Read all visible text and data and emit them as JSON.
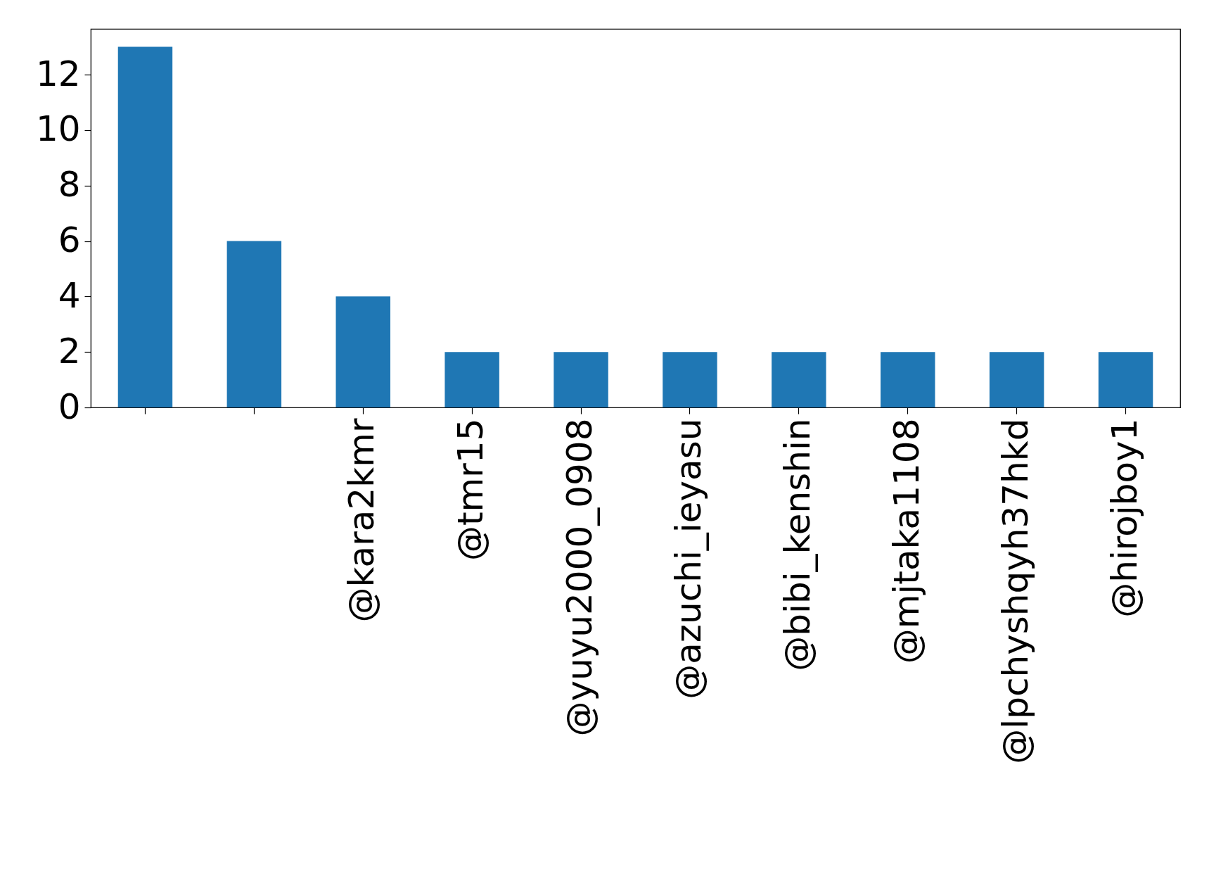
{
  "chart_data": {
    "type": "bar",
    "categories": [
      null,
      null,
      "@kara2kmr",
      "@tmr15",
      "@yuyu2000_0908",
      "@azuchi_ieyasu",
      "@bibi_kenshin",
      "@mjtaka1108",
      "@lpchyshqyh37hkd",
      "@hirojboy1"
    ],
    "values": [
      13,
      6,
      4,
      2,
      2,
      2,
      2,
      2,
      2,
      2
    ],
    "color": "#1f77b4",
    "ylim": [
      0,
      13.65
    ],
    "yticks": [
      0,
      2,
      4,
      6,
      8,
      10,
      12
    ],
    "grid": false
  }
}
